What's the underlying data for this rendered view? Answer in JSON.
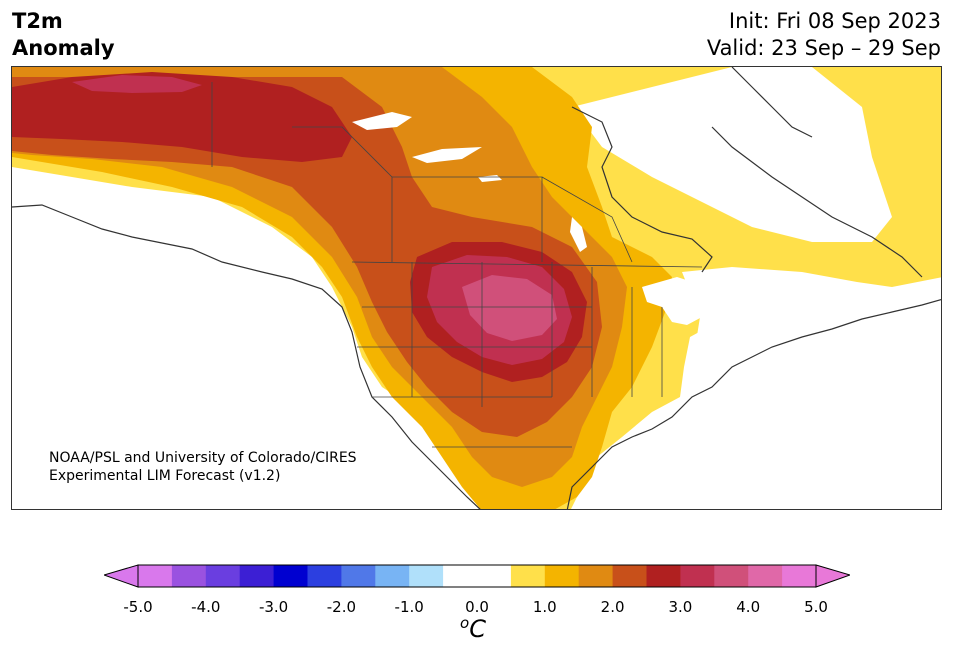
{
  "header": {
    "title_line1": "T2m",
    "title_line2": "Anomaly",
    "init": "Init: Fri 08 Sep 2023",
    "valid": "Valid: 23 Sep – 29 Sep"
  },
  "credit": {
    "line1": "NOAA/PSL and University of Colorado/CIRES",
    "line2": "Experimental LIM Forecast (v1.2)"
  },
  "colorbar": {
    "unit_base": "C",
    "unit_sup": "o",
    "ticks": [
      "-5.0",
      "-4.0",
      "-3.0",
      "-2.0",
      "-1.0",
      "0.0",
      "1.0",
      "2.0",
      "3.0",
      "4.0",
      "5.0"
    ],
    "colors": [
      "#d978ec",
      "#9a52e0",
      "#6a3ee0",
      "#3c1fd4",
      "#0000d0",
      "#2c3fe0",
      "#5078e8",
      "#78b4f4",
      "#b0e0fa",
      "#ffffff",
      "#ffffff",
      "#ffe04a",
      "#f4b400",
      "#e08a12",
      "#c8501a",
      "#b02020",
      "#c03050",
      "#d0507a",
      "#e068a8",
      "#e878d8"
    ],
    "over_color": "#e878d8",
    "under_color": "#d978ec"
  },
  "map": {
    "region": "North America",
    "levels": {
      "1": "#ffe04a",
      "2": "#f4b400",
      "3": "#e08a12",
      "4": "#c8501a",
      "5": "#b02020",
      "6": "#c03050",
      "7": "#d0507a"
    }
  }
}
